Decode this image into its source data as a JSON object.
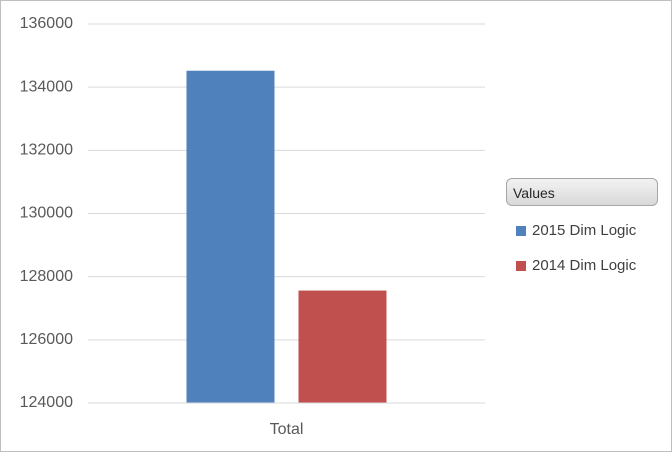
{
  "chart_data": {
    "type": "bar",
    "categories": [
      "Total"
    ],
    "series": [
      {
        "name": "2015 Dim Logic",
        "values": [
          134520
        ],
        "color": "#4f81bd"
      },
      {
        "name": "2014 Dim Logic",
        "values": [
          127560
        ],
        "color": "#c0504d"
      }
    ],
    "title": "",
    "xlabel": "",
    "ylabel": "",
    "ylim": [
      124000,
      136000
    ],
    "yticks": [
      "124000",
      "126000",
      "128000",
      "130000",
      "132000",
      "134000",
      "136000"
    ],
    "grid": true,
    "legend": {
      "title": "Values",
      "placement": "right"
    }
  }
}
